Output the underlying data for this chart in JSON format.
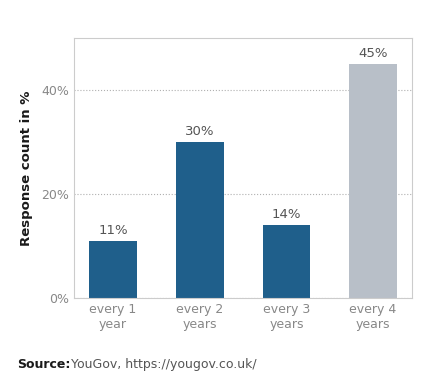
{
  "categories": [
    "every 1\nyear",
    "every 2\nyears",
    "every 3\nyears",
    "every 4\nyears"
  ],
  "values": [
    11,
    30,
    14,
    45
  ],
  "bar_colors": [
    "#1F5F8B",
    "#1F5F8B",
    "#1F5F8B",
    "#B8BFC8"
  ],
  "bar_labels": [
    "11%",
    "30%",
    "14%",
    "45%"
  ],
  "ylabel": "Response count in %",
  "yticks": [
    0,
    20,
    40
  ],
  "ytick_labels": [
    "0%",
    "20%",
    "40%"
  ],
  "ylim": [
    0,
    50
  ],
  "source_bold": "Source:",
  "source_text": " YouGov, https://yougov.co.uk/",
  "background_color": "#ffffff",
  "plot_background": "#ffffff",
  "grid_color": "#b0b0b0",
  "bar_label_fontsize": 9.5,
  "label_fontsize": 9.5,
  "tick_fontsize": 9,
  "source_fontsize": 9,
  "ylabel_color": "#1a1a1a",
  "tick_color": "#888888",
  "bar_label_color": "#555555",
  "source_bold_color": "#1a1a1a",
  "source_text_color": "#555555",
  "box_color": "#cccccc"
}
